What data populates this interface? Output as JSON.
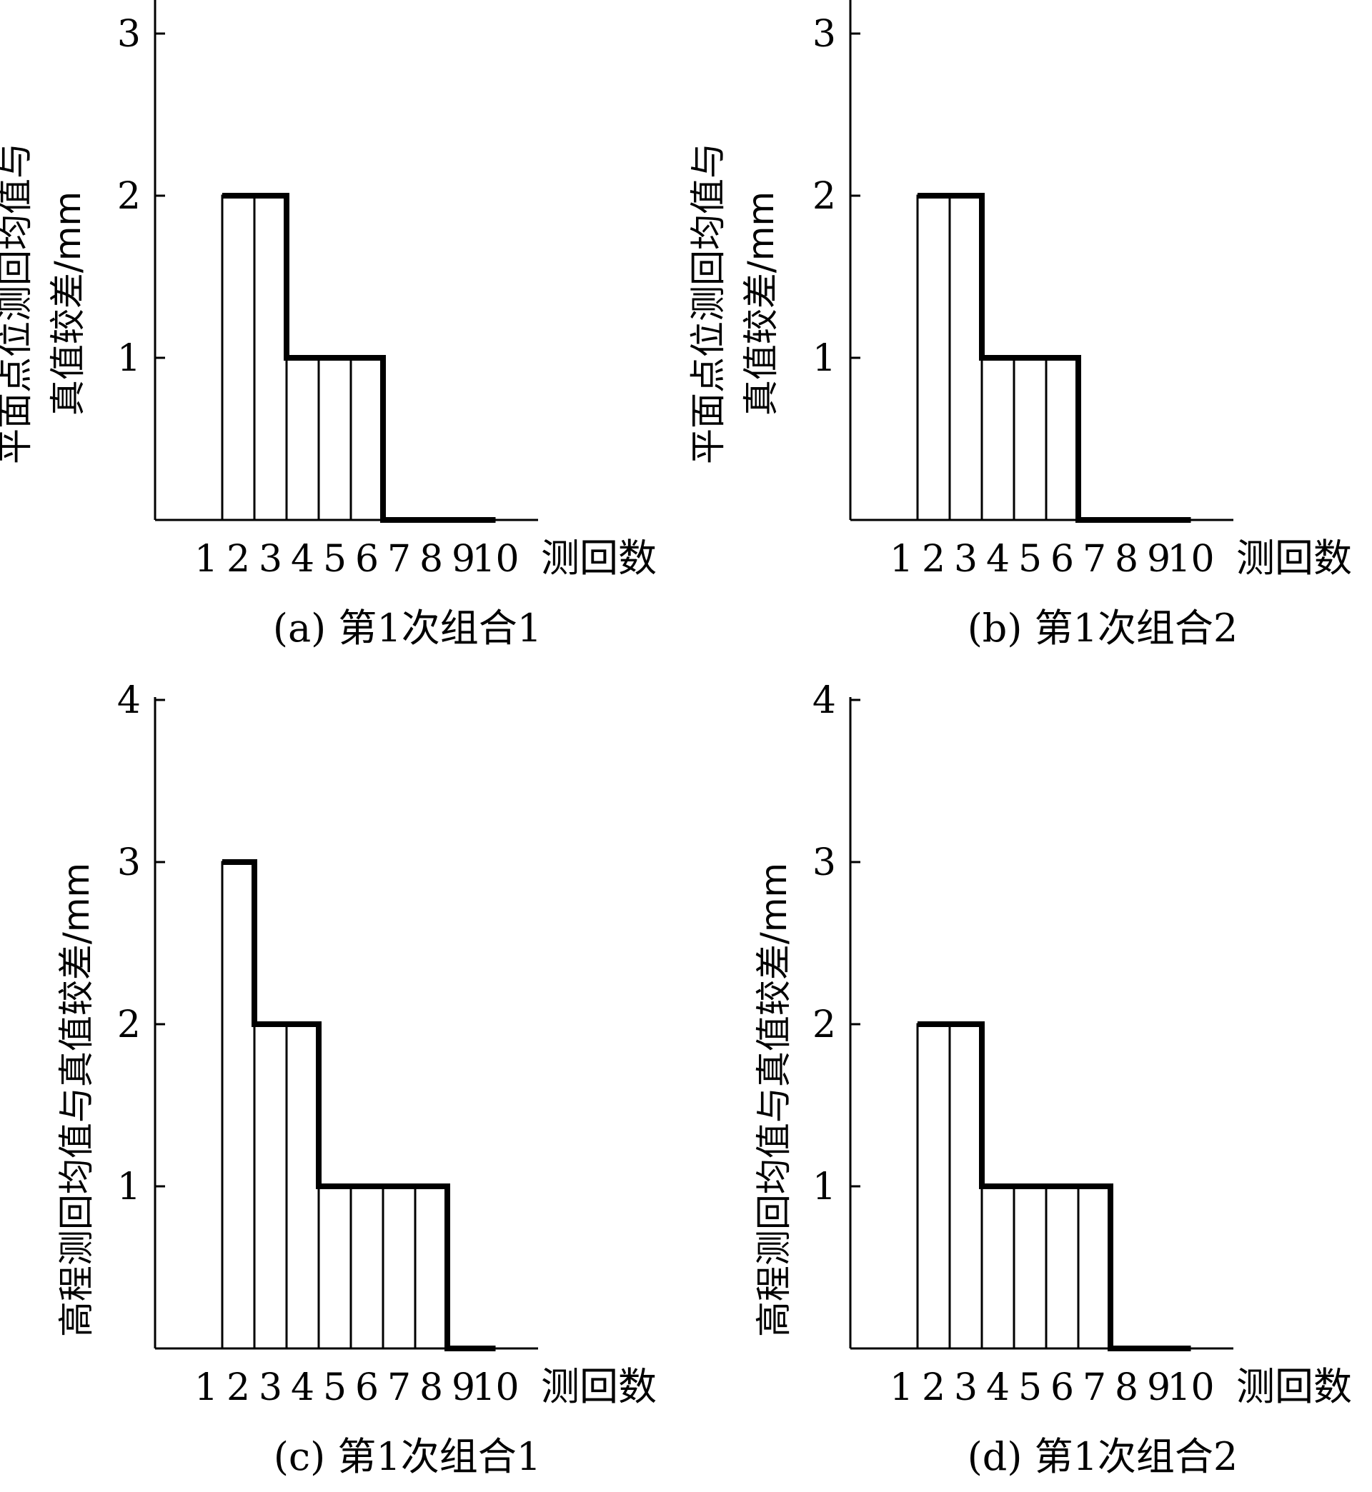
{
  "chart_data": [
    {
      "id": "a",
      "type": "bar",
      "caption": "(a) 第1次组合1",
      "ylabel_lines": [
        "平面点位测回均值与",
        "真值较差/mm"
      ],
      "xlabel": "测回数",
      "categories": [
        "1",
        "2",
        "3",
        "4",
        "5",
        "6",
        "7",
        "8",
        "9",
        "10"
      ],
      "values": [
        0,
        2,
        2,
        1,
        1,
        1,
        0,
        0,
        0,
        0
      ],
      "yticks": [
        1,
        2,
        3
      ],
      "ylim": [
        0,
        3.2
      ]
    },
    {
      "id": "b",
      "type": "bar",
      "caption": "(b) 第1次组合2",
      "ylabel_lines": [
        "平面点位测回均值与",
        "真值较差/mm"
      ],
      "xlabel": "测回数",
      "categories": [
        "1",
        "2",
        "3",
        "4",
        "5",
        "6",
        "7",
        "8",
        "9",
        "10"
      ],
      "values": [
        0,
        2,
        2,
        1,
        1,
        1,
        0,
        0,
        0,
        0
      ],
      "yticks": [
        1,
        2,
        3
      ],
      "ylim": [
        0,
        3.2
      ]
    },
    {
      "id": "c",
      "type": "bar",
      "caption": "(c) 第1次组合1",
      "ylabel_lines": [
        "高程测回均值与真值较差/mm"
      ],
      "xlabel": "测回数",
      "categories": [
        "1",
        "2",
        "3",
        "4",
        "5",
        "6",
        "7",
        "8",
        "9",
        "10"
      ],
      "values": [
        0,
        3,
        2,
        2,
        1,
        1,
        1,
        1,
        0,
        0
      ],
      "yticks": [
        1,
        2,
        3,
        4
      ],
      "ylim": [
        0,
        4
      ]
    },
    {
      "id": "d",
      "type": "bar",
      "caption": "(d) 第1次组合2",
      "ylabel_lines": [
        "高程测回均值与真值较差/mm"
      ],
      "xlabel": "测回数",
      "categories": [
        "1",
        "2",
        "3",
        "4",
        "5",
        "6",
        "7",
        "8",
        "9",
        "10"
      ],
      "values": [
        0,
        2,
        2,
        1,
        1,
        1,
        1,
        0,
        0,
        0
      ],
      "yticks": [
        1,
        2,
        3,
        4
      ],
      "ylim": [
        0,
        4
      ]
    }
  ]
}
